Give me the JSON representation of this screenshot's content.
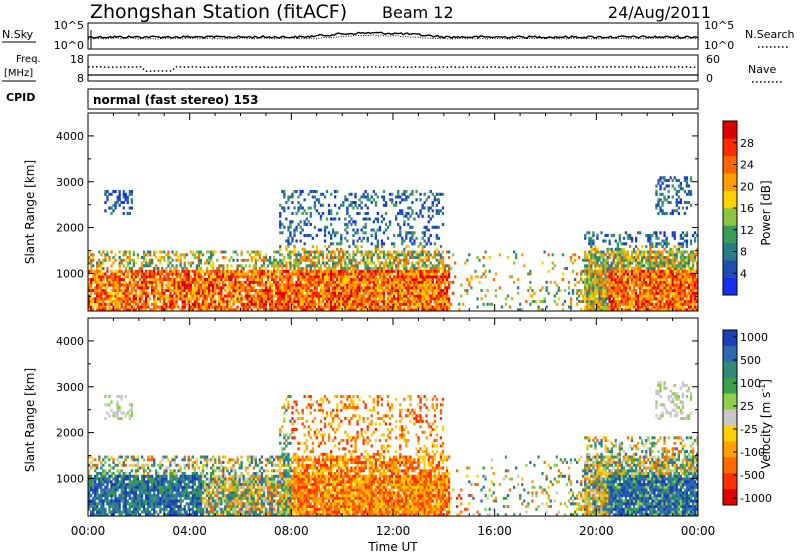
{
  "header": {
    "station": "Zhongshan Station (fitACF)",
    "beam": "Beam 12",
    "date": "24/Aug/2011"
  },
  "top_panel": {
    "left_label": "N.Sky",
    "right_label": "N.Search",
    "left_ticks": [
      "10^5",
      "10^0"
    ],
    "right_ticks": [
      "10^5",
      "10^0"
    ]
  },
  "freq_panel": {
    "left_label_1": "Freq.",
    "left_label_2": "[MHz]",
    "left_ticks": [
      "18",
      "8"
    ],
    "right_label": "Nave",
    "right_ticks": [
      "60",
      "0"
    ]
  },
  "cpid": {
    "label": "CPID",
    "program": "normal (fast stereo) 153"
  },
  "chart_data": [
    {
      "type": "heatmap",
      "quantity": "Power",
      "ylabel": "Slant Range [km]",
      "ylim": [
        180,
        4500
      ],
      "y_ticks": [
        1000,
        2000,
        3000,
        4000
      ],
      "xlabel": "",
      "x_tick_labels": [],
      "xlim_hours": [
        0,
        24
      ],
      "colorbar": {
        "label": "Power [dB]",
        "range": [
          0,
          32
        ],
        "ticks": [
          4,
          8,
          12,
          16,
          20,
          24,
          28
        ],
        "colors": [
          "#1730f0",
          "#1d4fb0",
          "#2a7a8a",
          "#3a9a5a",
          "#8cc63f",
          "#ffd200",
          "#ff9d00",
          "#ff6600",
          "#ff2a00",
          "#e00000"
        ]
      }
    },
    {
      "type": "heatmap",
      "quantity": "Velocity",
      "ylabel": "Slant Range [km]",
      "ylim": [
        180,
        4500
      ],
      "y_ticks": [
        1000,
        2000,
        3000,
        4000
      ],
      "xlabel": "Time UT",
      "x_tick_labels": [
        "00:00",
        "04:00",
        "08:00",
        "12:00",
        "16:00",
        "20:00",
        "00:00"
      ],
      "xlim_hours": [
        0,
        24
      ],
      "colorbar": {
        "label": "Velocity [m s",
        "label_sup": "-1",
        "label_end": "]",
        "tick_labels": [
          "1000",
          "500",
          "100",
          "25",
          "-25",
          "-100",
          "-500",
          "-1000"
        ],
        "colors": [
          "#1c3fb8",
          "#2b6ab0",
          "#2f8a7a",
          "#3aa04a",
          "#8fd04a",
          "#c8c8c8",
          "#ffd000",
          "#ffa000",
          "#ff6a00",
          "#ff3000",
          "#e00000"
        ]
      }
    }
  ]
}
